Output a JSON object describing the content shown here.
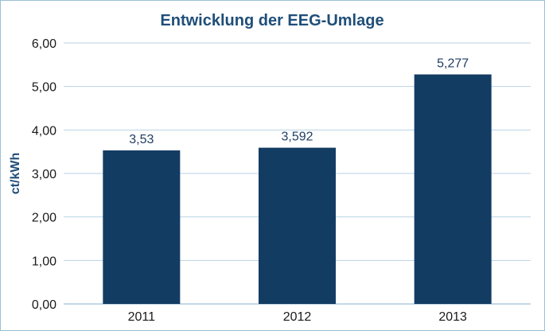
{
  "chart_data": {
    "type": "bar",
    "title": "Entwicklung der EEG-Umlage",
    "xlabel": "",
    "ylabel": "ct/kWh",
    "categories": [
      "2011",
      "2012",
      "2013"
    ],
    "values": [
      3.53,
      3.592,
      5.277
    ],
    "data_labels": [
      "3,53",
      "3,592",
      "5,277"
    ],
    "ylim": [
      0,
      6
    ],
    "y_ticks": [
      0,
      1,
      2,
      3,
      4,
      5,
      6
    ],
    "y_tick_labels": [
      "0,00",
      "1,00",
      "2,00",
      "3,00",
      "4,00",
      "5,00",
      "6,00"
    ],
    "grid": true,
    "legend": "none",
    "colors": {
      "bar": "#133c63",
      "grid": "#b8d2e6",
      "title": "#1f4e79",
      "frame": "#9bbfd8"
    }
  }
}
